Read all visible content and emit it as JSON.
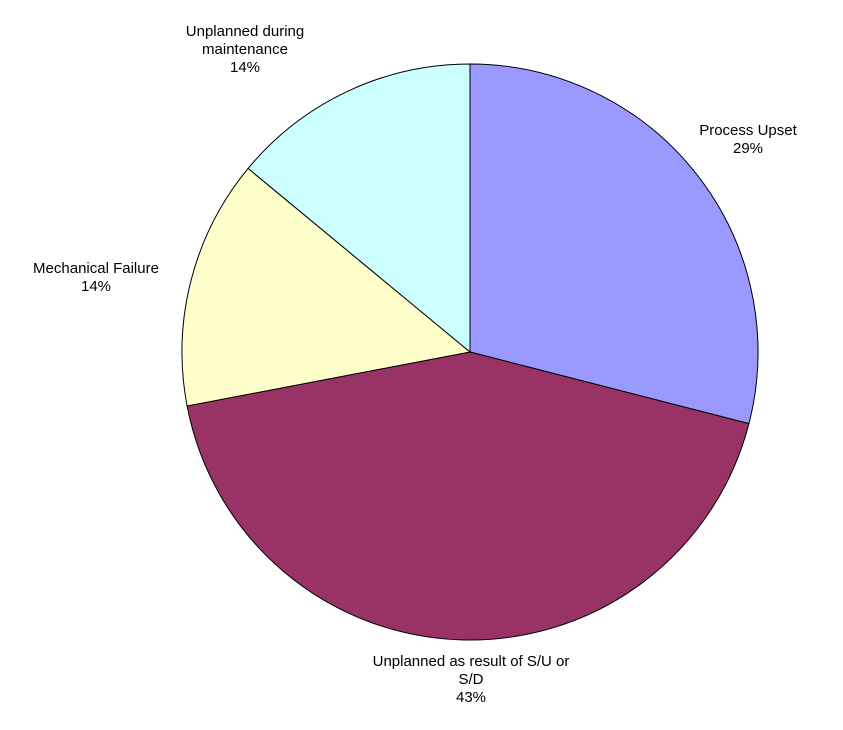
{
  "chart_data": {
    "type": "pie",
    "categories": [
      "Process Upset",
      "Unplanned as result of S/U or S/D",
      "Mechanical Failure",
      "Unplanned during maintenance"
    ],
    "values": [
      29,
      43,
      14,
      14
    ],
    "value_labels": [
      "29%",
      "43%",
      "14%",
      "14%"
    ],
    "colors": [
      "#9999ff",
      "#993366",
      "#ffffcc",
      "#ccffff"
    ]
  }
}
